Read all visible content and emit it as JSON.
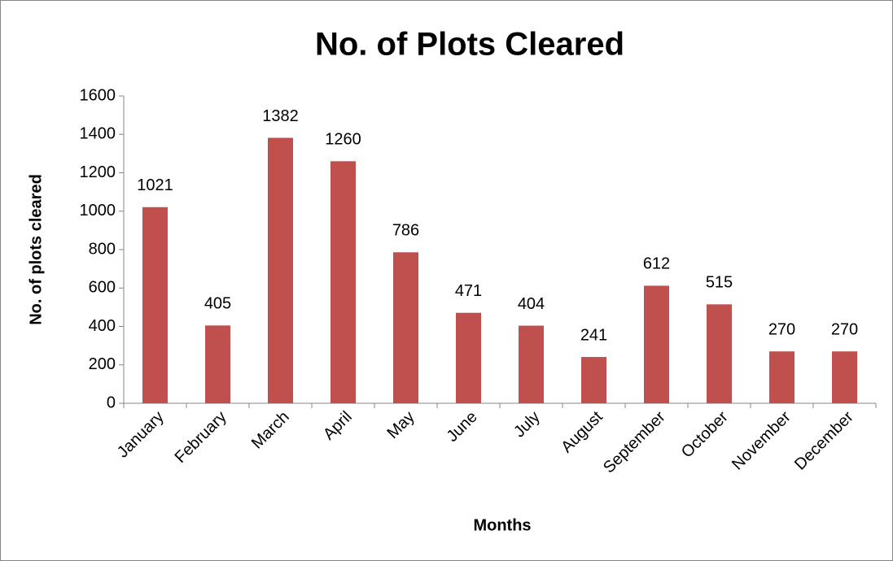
{
  "chart_data": {
    "type": "bar",
    "title": "No. of Plots Cleared",
    "x_label": "Months",
    "y_label": "No. of plots cleared",
    "categories": [
      "January",
      "February",
      "March",
      "April",
      "May",
      "June",
      "July",
      "August",
      "September",
      "October",
      "November",
      "December"
    ],
    "values": [
      1021,
      405,
      1382,
      1260,
      786,
      471,
      404,
      241,
      612,
      515,
      270,
      270
    ],
    "color": "#c0504d",
    "ylim": [
      0,
      1600
    ],
    "yticks": [
      0,
      200,
      400,
      600,
      800,
      1000,
      1200,
      1400,
      1600
    ],
    "grid": false
  }
}
